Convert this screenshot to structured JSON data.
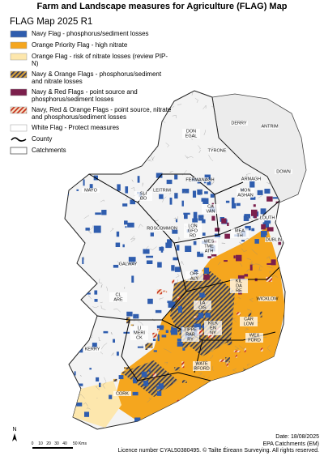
{
  "title": "Farm and Landscape measures for Agriculture (FLAG) Map",
  "legend": {
    "title": "FLAG Map 2025 R1",
    "items": [
      {
        "label": "Navy Flag - phosphorus/sediment losses",
        "symbol": "fill",
        "color": "#2f5dae"
      },
      {
        "label": "Orange Priority Flag - high nitrate",
        "symbol": "fill",
        "color": "#f5a61e"
      },
      {
        "label": "Orange Flag - risk of nitrate losses (review PIP-N)",
        "symbol": "fill",
        "color": "#fde7ad"
      },
      {
        "label": "Navy & Orange Flags - phosphorus/sediment and nitrate losses",
        "symbol": "hatch",
        "color": "#d8a33a",
        "hatch_color": "#3a3a55"
      },
      {
        "label": "Navy & Red Flags - point source and phosphorus/sediment losses",
        "symbol": "fill",
        "color": "#7b1f4c"
      },
      {
        "label": "Navy, Red & Orange Flags - point source, nitrate and phosphorus/sediment losses",
        "symbol": "hatch",
        "color": "#f4e3c9",
        "hatch_color": "#c8321e"
      },
      {
        "label": "White Flag - Protect measures",
        "symbol": "fill",
        "color": "#ffffff"
      },
      {
        "label": "County",
        "symbol": "line",
        "color": "#000000"
      },
      {
        "label": "Catchments",
        "symbol": "outline",
        "color": "#555555"
      }
    ]
  },
  "counties": [
    {
      "lines": [
        "DERRY"
      ]
    },
    {
      "lines": [
        "ANTRIM"
      ]
    },
    {
      "lines": [
        "TYRONE"
      ]
    },
    {
      "lines": [
        "DOWN"
      ]
    },
    {
      "lines": [
        "ARMAGH"
      ]
    },
    {
      "lines": [
        "FERMANAGH"
      ]
    },
    {
      "lines": [
        "DON",
        "EGAL"
      ]
    },
    {
      "lines": [
        "MON",
        "AGHAN"
      ]
    },
    {
      "lines": [
        "LOUTH"
      ]
    },
    {
      "lines": [
        "CA",
        "VAN"
      ]
    },
    {
      "lines": [
        "LEITRIM"
      ]
    },
    {
      "lines": [
        "SLI",
        "GO"
      ]
    },
    {
      "lines": [
        "MAYO"
      ]
    },
    {
      "lines": [
        "ROSCOMMON"
      ]
    },
    {
      "lines": [
        "LON",
        "GFO",
        "RD"
      ]
    },
    {
      "lines": [
        "MEA",
        "TH"
      ]
    },
    {
      "lines": [
        "DUBLIN"
      ]
    },
    {
      "lines": [
        "WES",
        "TME",
        "ATH"
      ]
    },
    {
      "lines": [
        "GALWAY"
      ]
    },
    {
      "lines": [
        "OFF",
        "ALY"
      ]
    },
    {
      "lines": [
        "KIL",
        "DA",
        "RE"
      ]
    },
    {
      "lines": [
        "WICKLOW"
      ]
    },
    {
      "lines": [
        "LA",
        "OIS"
      ]
    },
    {
      "lines": [
        "CL",
        "ARE"
      ]
    },
    {
      "lines": [
        "TIPPE",
        "RAR",
        "RY"
      ]
    },
    {
      "lines": [
        "KILK",
        "EN",
        "NY"
      ]
    },
    {
      "lines": [
        "CAR",
        "LOW"
      ]
    },
    {
      "lines": [
        "WEX",
        "FORD"
      ]
    },
    {
      "lines": [
        "LI",
        "MERI",
        "CK"
      ]
    },
    {
      "lines": [
        "KERRY"
      ]
    },
    {
      "lines": [
        "WATE",
        "RFORD"
      ]
    },
    {
      "lines": [
        "CORK"
      ]
    }
  ],
  "north": "N",
  "scale_bar": {
    "labels": [
      "0",
      "10",
      "20",
      "30",
      "40",
      "50 Kms"
    ]
  },
  "footer": {
    "date": "Date: 18/08/2025",
    "source": "EPA Catchments (EM)",
    "licence": "Licence number CYAL50380495. © Tailte Éireann Surveying. All rights reserved."
  }
}
